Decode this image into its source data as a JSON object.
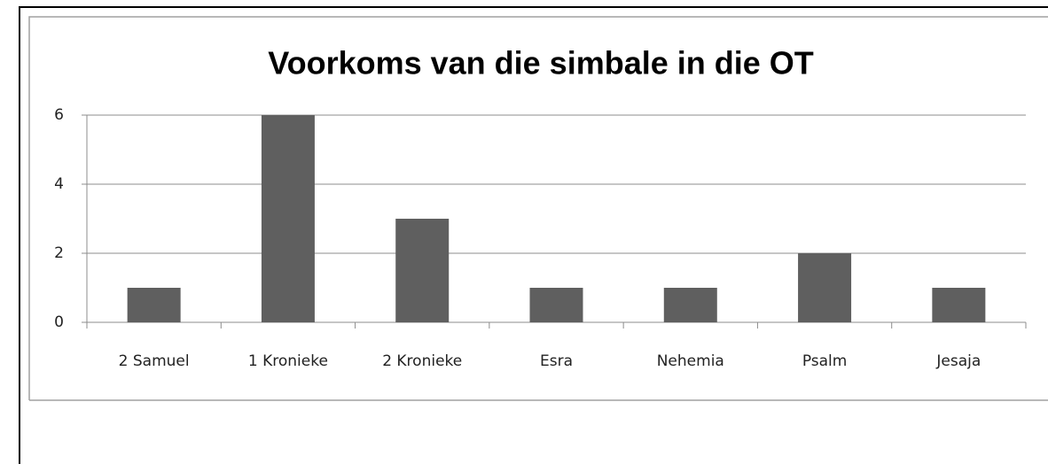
{
  "chart_data": {
    "type": "bar",
    "title": "Voorkoms van die simbale in die OT",
    "categories": [
      "2 Samuel",
      "1 Kronieke",
      "2 Kronieke",
      "Esra",
      "Nehemia",
      "Psalm",
      "Jesaja"
    ],
    "values": [
      1,
      6,
      3,
      1,
      1,
      2,
      1
    ],
    "color": "#5f5f5f",
    "ylim": [
      0,
      6
    ],
    "yticks": [
      0,
      2,
      4,
      6
    ],
    "grid": true
  }
}
